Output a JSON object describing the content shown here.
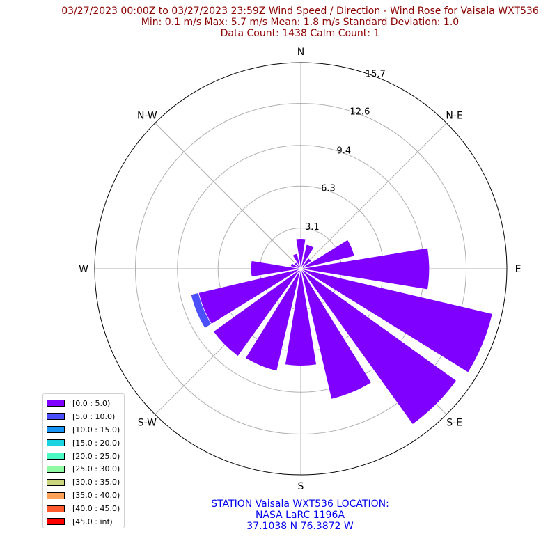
{
  "title": {
    "line1": "03/27/2023 00:00Z to 03/27/2023 23:59Z Wind Speed / Direction - Wind Rose for Vaisala WXT536",
    "line2": "Min: 0.1 m/s   Max: 5.7 m/s   Mean: 1.8 m/s  Standard Deviation: 1.0",
    "line3": "Data Count: 1438  Calm Count:  1"
  },
  "station": {
    "line1": "STATION Vaisala WXT536 LOCATION:",
    "line2": "NASA LaRC 1196A",
    "line3": "37.1038 N 76.3872 W"
  },
  "legend": {
    "items": [
      {
        "label": "[0.0 : 5.0)",
        "color": "#7f00ff"
      },
      {
        "label": "[5.0 : 10.0)",
        "color": "#4c50fc"
      },
      {
        "label": "[10.0 : 15.0)",
        "color": "#1996f3"
      },
      {
        "label": "[15.0 : 20.0)",
        "color": "#1ad4df"
      },
      {
        "label": "[20.0 : 25.0)",
        "color": "#4cf9c5"
      },
      {
        "label": "[25.0 : 30.0)",
        "color": "#8ff9a4"
      },
      {
        "label": "[30.0 : 35.0)",
        "color": "#ccd47e"
      },
      {
        "label": "[35.0 : 40.0)",
        "color": "#ffa156"
      },
      {
        "label": "[40.0 : 45.0)",
        "color": "#ff5a2e"
      },
      {
        "label": "[45.0 : inf)",
        "color": "#ff0000"
      }
    ]
  },
  "chart_data": {
    "type": "wind-rose",
    "direction_labels": [
      "N",
      "N-E",
      "E",
      "S-E",
      "S",
      "S-W",
      "W",
      "N-W"
    ],
    "radial_ticks": [
      3.1,
      6.3,
      9.4,
      12.6,
      15.7
    ],
    "rmax": 15.7,
    "grid": true,
    "legend_placement": "lower-left",
    "sector_count": 16,
    "sectors": [
      {
        "direction_deg": 0,
        "bins": [
          2.3
        ]
      },
      {
        "direction_deg": 22.5,
        "bins": [
          1.9
        ]
      },
      {
        "direction_deg": 45,
        "bins": [
          1.0
        ]
      },
      {
        "direction_deg": 67.5,
        "bins": [
          4.2
        ]
      },
      {
        "direction_deg": 90,
        "bins": [
          9.8
        ]
      },
      {
        "direction_deg": 112.5,
        "bins": [
          15.0
        ]
      },
      {
        "direction_deg": 135,
        "bins": [
          14.6
        ]
      },
      {
        "direction_deg": 157.5,
        "bins": [
          10.2
        ]
      },
      {
        "direction_deg": 180,
        "bins": [
          7.4
        ]
      },
      {
        "direction_deg": 202.5,
        "bins": [
          8.0
        ]
      },
      {
        "direction_deg": 225,
        "bins": [
          8.2
        ]
      },
      {
        "direction_deg": 247.5,
        "bins": [
          8.0,
          0.6
        ]
      },
      {
        "direction_deg": 270,
        "bins": [
          3.8
        ]
      },
      {
        "direction_deg": 292.5,
        "bins": [
          0.8
        ]
      },
      {
        "direction_deg": 315,
        "bins": [
          0.6
        ]
      },
      {
        "direction_deg": 337.5,
        "bins": [
          1.2
        ]
      }
    ]
  }
}
